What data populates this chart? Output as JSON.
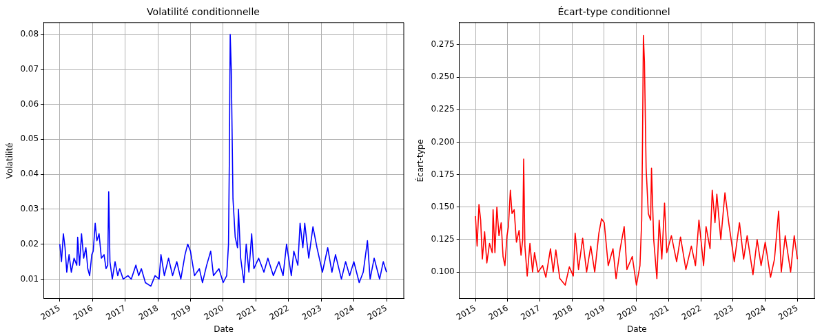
{
  "chart_data": [
    {
      "type": "line",
      "title": "Volatilité conditionnelle",
      "xlabel": "Date",
      "ylabel": "Volatilité",
      "grid": true,
      "marker": "none",
      "line_style": "solid",
      "x": [
        "2015-01-01",
        "2015-01-20",
        "2015-02-10",
        "2015-03-01",
        "2015-03-20",
        "2015-04-15",
        "2015-05-10",
        "2015-06-10",
        "2015-07-10",
        "2015-07-20",
        "2015-08-10",
        "2015-09-01",
        "2015-09-25",
        "2015-10-20",
        "2015-11-10",
        "2015-12-01",
        "2015-12-25",
        "2016-01-10",
        "2016-02-01",
        "2016-02-20",
        "2016-03-15",
        "2016-04-10",
        "2016-05-10",
        "2016-06-01",
        "2016-06-20",
        "2016-07-01",
        "2016-07-15",
        "2016-08-10",
        "2016-09-10",
        "2016-10-10",
        "2016-11-01",
        "2016-12-10",
        "2017-02-01",
        "2017-03-10",
        "2017-05-01",
        "2017-06-01",
        "2017-07-01",
        "2017-08-15",
        "2017-10-15",
        "2017-12-01",
        "2018-01-15",
        "2018-02-05",
        "2018-03-15",
        "2018-05-01",
        "2018-06-15",
        "2018-08-01",
        "2018-09-15",
        "2018-11-01",
        "2018-12-01",
        "2019-01-01",
        "2019-02-15",
        "2019-04-10",
        "2019-05-15",
        "2019-07-01",
        "2019-08-15",
        "2019-09-15",
        "2019-11-15",
        "2020-01-01",
        "2020-02-10",
        "2020-03-01",
        "2020-03-10",
        "2020-03-20",
        "2020-04-01",
        "2020-04-20",
        "2020-05-15",
        "2020-06-10",
        "2020-06-20",
        "2020-07-15",
        "2020-08-20",
        "2020-09-15",
        "2020-10-15",
        "2020-11-15",
        "2020-12-10",
        "2021-02-01",
        "2021-04-01",
        "2021-05-15",
        "2021-07-15",
        "2021-09-15",
        "2021-11-01",
        "2021-12-10",
        "2022-02-01",
        "2022-03-01",
        "2022-04-15",
        "2022-05-10",
        "2022-06-10",
        "2022-07-01",
        "2022-08-15",
        "2022-10-01",
        "2022-11-15",
        "2023-01-15",
        "2023-03-15",
        "2023-05-01",
        "2023-06-10",
        "2023-08-15",
        "2023-10-01",
        "2023-11-15",
        "2024-01-01",
        "2024-03-01",
        "2024-04-15",
        "2024-06-01",
        "2024-07-01",
        "2024-08-15",
        "2024-10-15",
        "2024-11-25",
        "2024-12-31"
      ],
      "xlim": [
        "2014-07-03",
        "2025-07-12"
      ],
      "xticks": [
        "2015",
        "2016",
        "2017",
        "2018",
        "2019",
        "2020",
        "2021",
        "2022",
        "2023",
        "2024",
        "2025"
      ],
      "ylim": [
        0.0044,
        0.0834
      ],
      "yticks": [
        0.01,
        0.02,
        0.03,
        0.04,
        0.05,
        0.06,
        0.07,
        0.08
      ],
      "series": [
        {
          "color": "#0000ff",
          "values": [
            0.02,
            0.015,
            0.023,
            0.019,
            0.012,
            0.017,
            0.012,
            0.016,
            0.014,
            0.022,
            0.014,
            0.023,
            0.016,
            0.019,
            0.013,
            0.011,
            0.017,
            0.018,
            0.026,
            0.021,
            0.023,
            0.016,
            0.017,
            0.013,
            0.014,
            0.035,
            0.015,
            0.01,
            0.015,
            0.011,
            0.013,
            0.01,
            0.011,
            0.01,
            0.014,
            0.011,
            0.013,
            0.009,
            0.008,
            0.011,
            0.01,
            0.017,
            0.011,
            0.016,
            0.011,
            0.015,
            0.01,
            0.017,
            0.02,
            0.018,
            0.011,
            0.013,
            0.009,
            0.014,
            0.018,
            0.011,
            0.013,
            0.009,
            0.011,
            0.02,
            0.043,
            0.08,
            0.07,
            0.033,
            0.022,
            0.019,
            0.03,
            0.016,
            0.009,
            0.02,
            0.012,
            0.023,
            0.013,
            0.016,
            0.012,
            0.016,
            0.011,
            0.015,
            0.011,
            0.02,
            0.011,
            0.018,
            0.014,
            0.026,
            0.019,
            0.026,
            0.016,
            0.025,
            0.019,
            0.012,
            0.019,
            0.012,
            0.017,
            0.01,
            0.015,
            0.011,
            0.015,
            0.009,
            0.012,
            0.021,
            0.01,
            0.016,
            0.01,
            0.015,
            0.012
          ]
        }
      ]
    },
    {
      "type": "line",
      "title": "Écart-type conditionnel",
      "xlabel": "Date",
      "ylabel": "Écart-type",
      "grid": true,
      "marker": "none",
      "line_style": "solid",
      "x": [
        "2015-01-01",
        "2015-01-20",
        "2015-02-10",
        "2015-03-01",
        "2015-03-20",
        "2015-04-15",
        "2015-05-10",
        "2015-06-10",
        "2015-07-10",
        "2015-07-20",
        "2015-08-10",
        "2015-09-01",
        "2015-09-25",
        "2015-10-20",
        "2015-11-10",
        "2015-12-01",
        "2015-12-25",
        "2016-01-10",
        "2016-02-01",
        "2016-02-20",
        "2016-03-15",
        "2016-04-10",
        "2016-05-10",
        "2016-06-01",
        "2016-06-20",
        "2016-07-01",
        "2016-07-15",
        "2016-08-10",
        "2016-09-10",
        "2016-10-10",
        "2016-11-01",
        "2016-12-10",
        "2017-02-01",
        "2017-03-10",
        "2017-05-01",
        "2017-06-01",
        "2017-07-01",
        "2017-08-15",
        "2017-10-15",
        "2017-12-01",
        "2018-01-15",
        "2018-02-05",
        "2018-03-15",
        "2018-05-01",
        "2018-06-15",
        "2018-08-01",
        "2018-09-15",
        "2018-11-01",
        "2018-12-01",
        "2019-01-01",
        "2019-02-15",
        "2019-04-10",
        "2019-05-15",
        "2019-07-01",
        "2019-08-15",
        "2019-09-15",
        "2019-11-15",
        "2020-01-01",
        "2020-02-10",
        "2020-03-01",
        "2020-03-10",
        "2020-03-20",
        "2020-04-01",
        "2020-04-20",
        "2020-05-15",
        "2020-06-10",
        "2020-06-20",
        "2020-07-15",
        "2020-08-20",
        "2020-09-15",
        "2020-10-15",
        "2020-11-15",
        "2020-12-10",
        "2021-02-01",
        "2021-04-01",
        "2021-05-15",
        "2021-07-15",
        "2021-09-15",
        "2021-11-01",
        "2021-12-10",
        "2022-02-01",
        "2022-03-01",
        "2022-04-15",
        "2022-05-10",
        "2022-06-10",
        "2022-07-01",
        "2022-08-15",
        "2022-10-01",
        "2022-11-15",
        "2023-01-15",
        "2023-03-15",
        "2023-05-01",
        "2023-06-10",
        "2023-08-15",
        "2023-10-01",
        "2023-11-15",
        "2024-01-01",
        "2024-03-01",
        "2024-04-15",
        "2024-06-01",
        "2024-07-01",
        "2024-08-15",
        "2024-10-15",
        "2024-11-25",
        "2024-12-31"
      ],
      "xlim": [
        "2014-07-03",
        "2025-07-12"
      ],
      "xticks": [
        "2015",
        "2016",
        "2017",
        "2018",
        "2019",
        "2020",
        "2021",
        "2022",
        "2023",
        "2024",
        "2025"
      ],
      "ylim": [
        0.0795,
        0.292
      ],
      "yticks": [
        {
          "value": 0.1,
          "label": "0.100"
        },
        0.125,
        {
          "value": 0.15,
          "label": "0.150"
        },
        0.175,
        {
          "value": 0.2,
          "label": "0.200"
        },
        0.225,
        {
          "value": 0.25,
          "label": "0.250"
        },
        0.275
      ],
      "series": [
        {
          "color": "#ff0000",
          "values": [
            0.143,
            0.12,
            0.152,
            0.14,
            0.11,
            0.131,
            0.107,
            0.122,
            0.115,
            0.148,
            0.115,
            0.15,
            0.128,
            0.138,
            0.112,
            0.105,
            0.128,
            0.135,
            0.163,
            0.145,
            0.148,
            0.123,
            0.132,
            0.113,
            0.125,
            0.187,
            0.12,
            0.097,
            0.122,
            0.1,
            0.115,
            0.1,
            0.105,
            0.096,
            0.118,
            0.1,
            0.117,
            0.095,
            0.09,
            0.104,
            0.097,
            0.13,
            0.102,
            0.126,
            0.1,
            0.12,
            0.1,
            0.13,
            0.141,
            0.138,
            0.105,
            0.118,
            0.095,
            0.118,
            0.135,
            0.102,
            0.112,
            0.09,
            0.105,
            0.14,
            0.2,
            0.282,
            0.262,
            0.18,
            0.145,
            0.14,
            0.18,
            0.125,
            0.095,
            0.14,
            0.11,
            0.153,
            0.115,
            0.128,
            0.108,
            0.127,
            0.102,
            0.12,
            0.105,
            0.14,
            0.105,
            0.135,
            0.118,
            0.163,
            0.138,
            0.16,
            0.125,
            0.161,
            0.137,
            0.108,
            0.138,
            0.11,
            0.128,
            0.098,
            0.125,
            0.105,
            0.123,
            0.096,
            0.11,
            0.147,
            0.1,
            0.128,
            0.1,
            0.128,
            0.11
          ]
        }
      ]
    }
  ]
}
